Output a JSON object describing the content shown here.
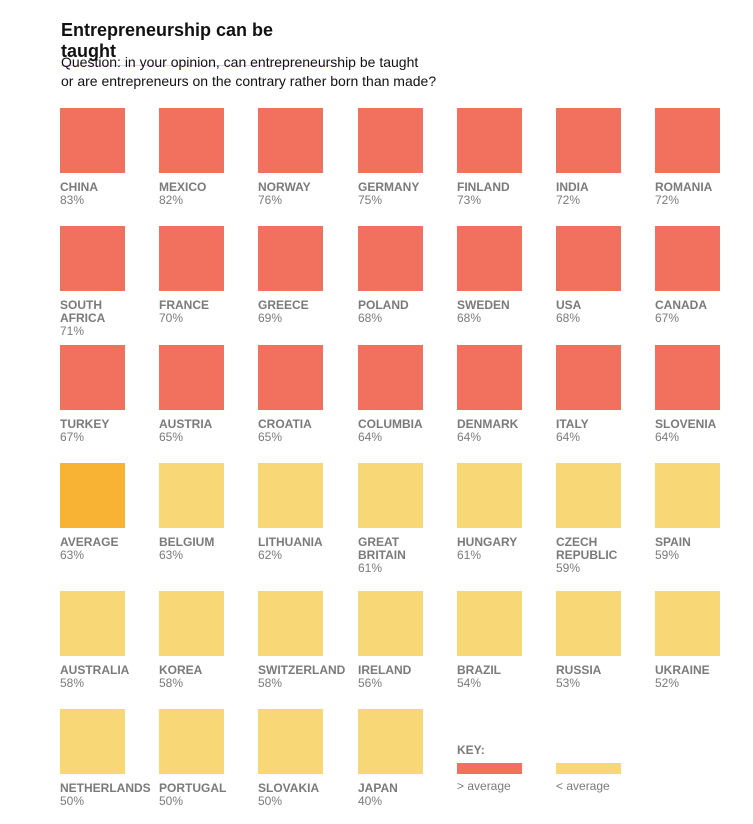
{
  "title": "Entrepreneurship can be taught",
  "subtitle": "Question: in your opinion, can entrepreneurship be taught\nor are entrepreneurs on the contrary rather born than made?",
  "colors": {
    "above": "#F2705E",
    "below": "#F8D776",
    "average": "#F8B335"
  },
  "key": {
    "title": "KEY:",
    "above_label": "> average",
    "below_label": "< average"
  },
  "chart_data": {
    "type": "table",
    "title": "Entrepreneurship can be taught",
    "average": 63,
    "items": [
      {
        "name": "CHINA",
        "pct": "83%",
        "value": 83,
        "group": "above"
      },
      {
        "name": "MEXICO",
        "pct": "82%",
        "value": 82,
        "group": "above"
      },
      {
        "name": "NORWAY",
        "pct": "76%",
        "value": 76,
        "group": "above"
      },
      {
        "name": "GERMANY",
        "pct": "75%",
        "value": 75,
        "group": "above"
      },
      {
        "name": "FINLAND",
        "pct": "73%",
        "value": 73,
        "group": "above"
      },
      {
        "name": "INDIA",
        "pct": "72%",
        "value": 72,
        "group": "above"
      },
      {
        "name": "ROMANIA",
        "pct": "72%",
        "value": 72,
        "group": "above"
      },
      {
        "name": "SOUTH\nAFRICA",
        "pct": "71%",
        "value": 71,
        "group": "above"
      },
      {
        "name": "FRANCE",
        "pct": "70%",
        "value": 70,
        "group": "above"
      },
      {
        "name": "GREECE",
        "pct": "69%",
        "value": 69,
        "group": "above"
      },
      {
        "name": "POLAND",
        "pct": "68%",
        "value": 68,
        "group": "above"
      },
      {
        "name": "SWEDEN",
        "pct": "68%",
        "value": 68,
        "group": "above"
      },
      {
        "name": "USA",
        "pct": "68%",
        "value": 68,
        "group": "above"
      },
      {
        "name": "CANADA",
        "pct": "67%",
        "value": 67,
        "group": "above"
      },
      {
        "name": "TURKEY",
        "pct": "67%",
        "value": 67,
        "group": "above"
      },
      {
        "name": "AUSTRIA",
        "pct": "65%",
        "value": 65,
        "group": "above"
      },
      {
        "name": "CROATIA",
        "pct": "65%",
        "value": 65,
        "group": "above"
      },
      {
        "name": "COLUMBIA",
        "pct": "64%",
        "value": 64,
        "group": "above"
      },
      {
        "name": "DENMARK",
        "pct": "64%",
        "value": 64,
        "group": "above"
      },
      {
        "name": "ITALY",
        "pct": "64%",
        "value": 64,
        "group": "above"
      },
      {
        "name": "SLOVENIA",
        "pct": "64%",
        "value": 64,
        "group": "above"
      },
      {
        "name": "AVERAGE",
        "pct": "63%",
        "value": 63,
        "group": "average"
      },
      {
        "name": "BELGIUM",
        "pct": "63%",
        "value": 63,
        "group": "below"
      },
      {
        "name": "LITHUANIA",
        "pct": "62%",
        "value": 62,
        "group": "below"
      },
      {
        "name": "GREAT\nBRITAIN",
        "pct": "61%",
        "value": 61,
        "group": "below"
      },
      {
        "name": "HUNGARY",
        "pct": "61%",
        "value": 61,
        "group": "below"
      },
      {
        "name": "CZECH\nREPUBLIC",
        "pct": "59%",
        "value": 59,
        "group": "below"
      },
      {
        "name": "SPAIN",
        "pct": "59%",
        "value": 59,
        "group": "below"
      },
      {
        "name": "AUSTRALIA",
        "pct": "58%",
        "value": 58,
        "group": "below"
      },
      {
        "name": "KOREA",
        "pct": "58%",
        "value": 58,
        "group": "below"
      },
      {
        "name": "SWITZERLAND",
        "pct": "58%",
        "value": 58,
        "group": "below"
      },
      {
        "name": "IRELAND",
        "pct": "56%",
        "value": 56,
        "group": "below"
      },
      {
        "name": "BRAZIL",
        "pct": "54%",
        "value": 54,
        "group": "below"
      },
      {
        "name": "RUSSIA",
        "pct": "53%",
        "value": 53,
        "group": "below"
      },
      {
        "name": "UKRAINE",
        "pct": "52%",
        "value": 52,
        "group": "below"
      },
      {
        "name": "NETHERLANDS",
        "pct": "50%",
        "value": 50,
        "group": "below"
      },
      {
        "name": "PORTUGAL",
        "pct": "50%",
        "value": 50,
        "group": "below"
      },
      {
        "name": "SLOVAKIA",
        "pct": "50%",
        "value": 50,
        "group": "below"
      },
      {
        "name": "JAPAN",
        "pct": "40%",
        "value": 40,
        "group": "below"
      }
    ]
  }
}
